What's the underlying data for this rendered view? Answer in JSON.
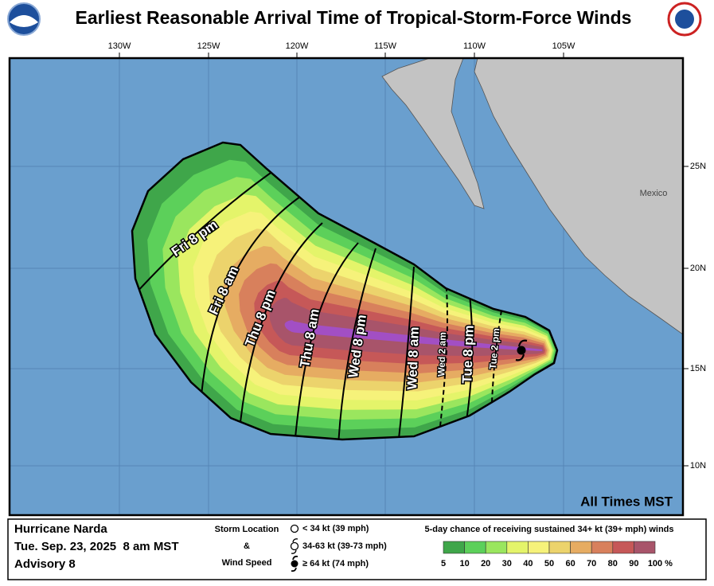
{
  "title": "Earliest Reasonable Arrival Time of Tropical-Storm-Force Winds",
  "longitude_labels": [
    "130W",
    "125W",
    "120W",
    "115W",
    "110W",
    "105W"
  ],
  "latitude_labels": [
    "25N",
    "20N",
    "15N",
    "10N"
  ],
  "country_label": "Mexico",
  "times_note": "All Times MST",
  "arrival_times": [
    "Fri 8 pm",
    "Fri 8 am",
    "Thu 8 pm",
    "Thu 8 am",
    "Wed 8 pm",
    "Wed 8 am",
    "Wed 2 am",
    "Tue 8 pm",
    "Tue 2 pm"
  ],
  "footer": {
    "storm": "Hurricane Narda",
    "issued": "Tue. Sep. 23, 2025  8 am MST",
    "advisory": "Advisory 8",
    "key_title": [
      "Storm Location",
      "&",
      "Wind Speed"
    ],
    "key_items": [
      "< 34 kt (39 mph)",
      "34-63 kt (39-73 mph)",
      "≥ 64 kt (74 mph)"
    ],
    "probability_title": "5-day chance of receiving sustained 34+ kt (39+ mph) winds",
    "probability_labels": [
      5,
      10,
      20,
      30,
      40,
      50,
      60,
      70,
      80,
      90,
      100
    ],
    "probability_unit": "%",
    "probability_colors": [
      "#3fa64a",
      "#5cd05a",
      "#9ae65e",
      "#e4f46a",
      "#f6f27a",
      "#ecd36c",
      "#e6ac62",
      "#d8805c",
      "#c65858",
      "#a8546a",
      "#a24fc4"
    ]
  }
}
